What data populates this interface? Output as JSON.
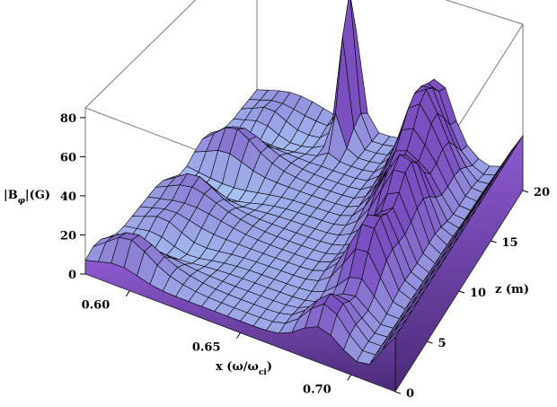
{
  "chart_data": {
    "type": "surface3d",
    "title": "",
    "xlabel": "x (ω/ω",
    "xlabel_sub": "ci",
    "xlabel_close": ")",
    "ylabel": "z (m)",
    "zlabel": "|B",
    "zlabel_sub": "φ",
    "zlabel_close": "|(G)",
    "x_ticks": [
      "0.60",
      "0.65",
      "0.70"
    ],
    "x_tick_values": [
      0.6,
      0.65,
      0.7
    ],
    "xlim": [
      0.58,
      0.72
    ],
    "y_ticks": [
      "0",
      "5",
      "10",
      "15",
      "20"
    ],
    "y_tick_values": [
      0,
      5,
      10,
      15,
      20
    ],
    "ylim": [
      0,
      20
    ],
    "z_ticks": [
      "0",
      "20",
      "40",
      "60",
      "80"
    ],
    "z_tick_values": [
      0,
      20,
      40,
      60,
      80
    ],
    "zlim": [
      0,
      85
    ],
    "colors": {
      "surface_high": "#7a4fc0",
      "surface_low": "#a8c6f5",
      "mesh": "#000000",
      "box": "#777777"
    },
    "features": [
      {
        "x": 0.633,
        "z_pos": 19.0,
        "amplitude": 74
      },
      {
        "x": 0.675,
        "z_pos": 18.5,
        "amplitude": 38
      },
      {
        "x": 0.69,
        "z_pos": 10.0,
        "amplitude": 28
      }
    ]
  }
}
